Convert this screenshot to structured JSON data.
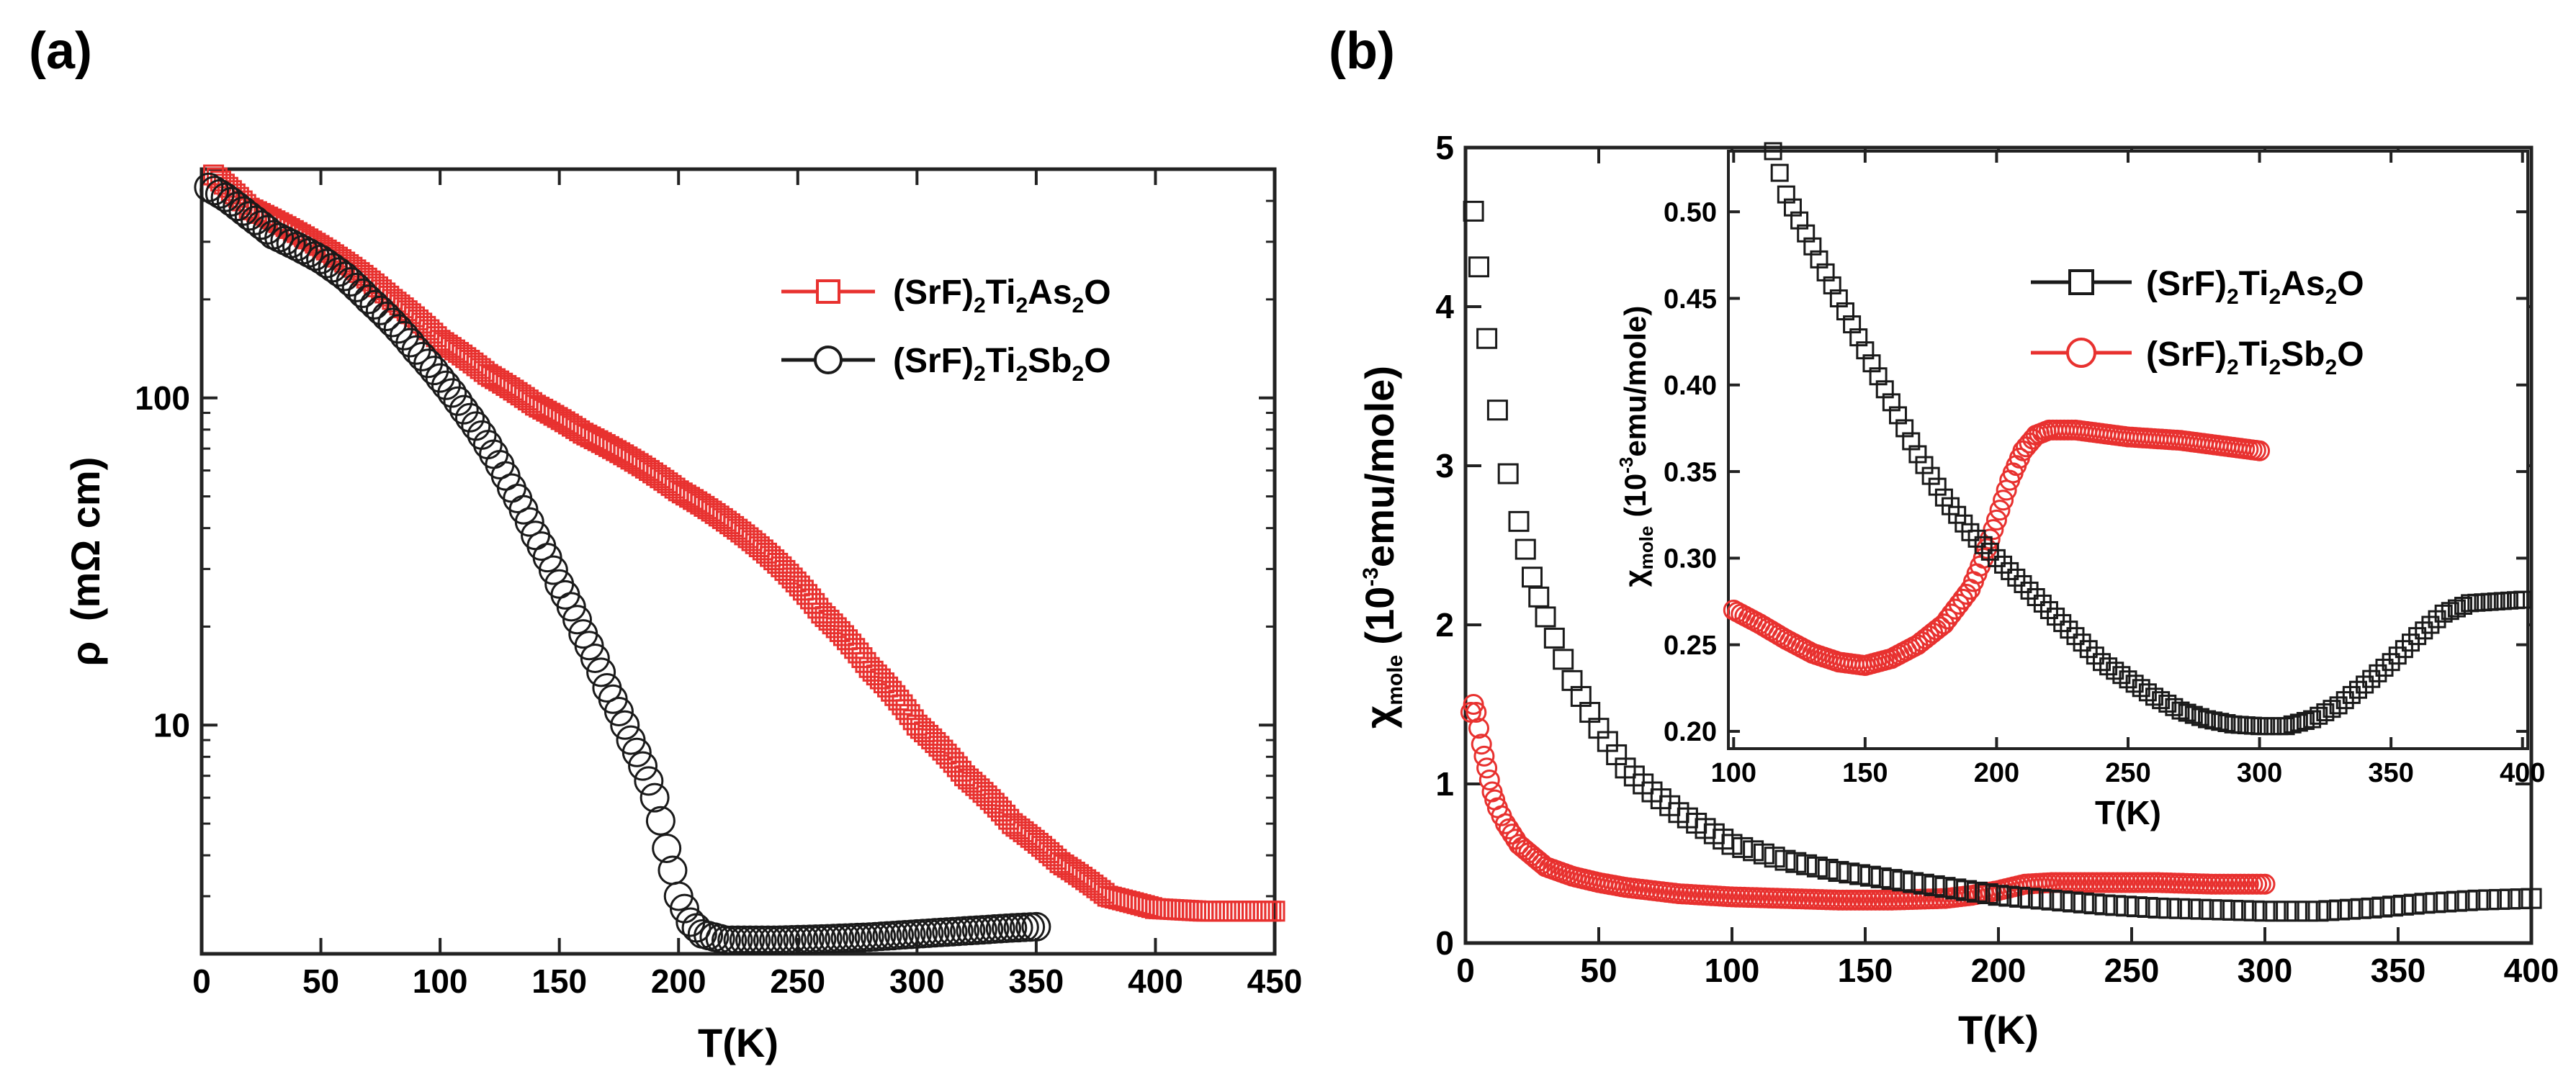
{
  "colors": {
    "black": "#1a1a1a",
    "red": "#e8312f",
    "axis": "#222222"
  },
  "chart_data": [
    {
      "panel_label": "(a)",
      "type": "scatter",
      "xlabel": "T(K)",
      "ylabel": {
        "main": "ρ",
        "unit": "(mΩ cm)"
      },
      "xlim": [
        0,
        450
      ],
      "ylim": [
        2,
        500
      ],
      "yscale": "log",
      "xticks": [
        "0",
        "50",
        "100",
        "150",
        "200",
        "250",
        "300",
        "350",
        "400",
        "450"
      ],
      "yticks": [
        "10",
        "100"
      ],
      "legend_position": "top-right",
      "series": [
        {
          "name": "(SrF)2Ti2As2O",
          "label": {
            "base": "(SrF)",
            "s1": "2",
            "m1": "Ti",
            "s2": "2",
            "m2": "As",
            "s3": "2",
            "end": "O"
          },
          "color": "#e8312f",
          "marker": "square",
          "points": [
            [
              5,
              480
            ],
            [
              20,
              380
            ],
            [
              40,
              320
            ],
            [
              60,
              260
            ],
            [
              80,
              200
            ],
            [
              100,
              150
            ],
            [
              120,
              118
            ],
            [
              140,
              95
            ],
            [
              160,
              78
            ],
            [
              180,
              65
            ],
            [
              200,
              52
            ],
            [
              220,
              42
            ],
            [
              240,
              32
            ],
            [
              260,
              22
            ],
            [
              280,
              15
            ],
            [
              300,
              10
            ],
            [
              320,
              7
            ],
            [
              340,
              5
            ],
            [
              360,
              3.8
            ],
            [
              380,
              3.0
            ],
            [
              400,
              2.75
            ],
            [
              420,
              2.7
            ],
            [
              450,
              2.7
            ]
          ]
        },
        {
          "name": "(SrF)2Ti2Sb2O",
          "label": {
            "base": "(SrF)",
            "s1": "2",
            "m1": "Ti",
            "s2": "2",
            "m2": "Sb",
            "s3": "2",
            "end": "O"
          },
          "color": "#1a1a1a",
          "marker": "circle",
          "points": [
            [
              3,
              440
            ],
            [
              10,
              410
            ],
            [
              20,
              360
            ],
            [
              30,
              315
            ],
            [
              40,
              290
            ],
            [
              50,
              265
            ],
            [
              60,
              235
            ],
            [
              70,
              200
            ],
            [
              80,
              170
            ],
            [
              90,
              140
            ],
            [
              100,
              115
            ],
            [
              110,
              92
            ],
            [
              120,
              72
            ],
            [
              130,
              53
            ],
            [
              140,
              38
            ],
            [
              150,
              27
            ],
            [
              160,
              19
            ],
            [
              170,
              13
            ],
            [
              180,
              9
            ],
            [
              190,
              6
            ],
            [
              195,
              4.2
            ],
            [
              200,
              3.0
            ],
            [
              205,
              2.5
            ],
            [
              210,
              2.3
            ],
            [
              220,
              2.2
            ],
            [
              240,
              2.2
            ],
            [
              260,
              2.22
            ],
            [
              280,
              2.25
            ],
            [
              300,
              2.3
            ],
            [
              320,
              2.35
            ],
            [
              340,
              2.4
            ],
            [
              350,
              2.42
            ]
          ]
        }
      ]
    },
    {
      "panel_label": "(b)",
      "type": "scatter",
      "xlabel": "T(K)",
      "ylabel": {
        "chi": "χ",
        "sub": "mole",
        "open": "(10",
        "exp": "-3",
        "rest": "emu/mole)"
      },
      "xlim": [
        0,
        400
      ],
      "ylim": [
        0,
        5
      ],
      "xticks": [
        "0",
        "50",
        "100",
        "150",
        "200",
        "250",
        "300",
        "350",
        "400"
      ],
      "yticks": [
        "0",
        "1",
        "2",
        "3",
        "4",
        "5"
      ],
      "legend_position": "top-right",
      "series": [
        {
          "name": "(SrF)2Ti2As2O",
          "label": {
            "base": "(SrF)",
            "s1": "2",
            "m1": "Ti",
            "s2": "2",
            "m2": "As",
            "s3": "2",
            "end": "O"
          },
          "color": "#1a1a1a",
          "marker": "square",
          "points": [
            [
              3,
              4.6
            ],
            [
              5,
              4.25
            ],
            [
              8,
              3.8
            ],
            [
              12,
              3.35
            ],
            [
              16,
              2.95
            ],
            [
              20,
              2.65
            ],
            [
              25,
              2.3
            ],
            [
              30,
              2.05
            ],
            [
              40,
              1.65
            ],
            [
              50,
              1.35
            ],
            [
              60,
              1.1
            ],
            [
              70,
              0.95
            ],
            [
              80,
              0.82
            ],
            [
              90,
              0.72
            ],
            [
              100,
              0.62
            ],
            [
              120,
              0.52
            ],
            [
              140,
              0.45
            ],
            [
              160,
              0.4
            ],
            [
              180,
              0.35
            ],
            [
              200,
              0.3
            ],
            [
              220,
              0.27
            ],
            [
              240,
              0.24
            ],
            [
              260,
              0.22
            ],
            [
              280,
              0.21
            ],
            [
              300,
              0.2
            ],
            [
              320,
              0.2
            ],
            [
              340,
              0.22
            ],
            [
              360,
              0.25
            ],
            [
              380,
              0.27
            ],
            [
              400,
              0.28
            ]
          ]
        },
        {
          "name": "(SrF)2Ti2Sb2O",
          "label": {
            "base": "(SrF)",
            "s1": "2",
            "m1": "Ti",
            "s2": "2",
            "m2": "Sb",
            "s3": "2",
            "end": "O"
          },
          "color": "#e8312f",
          "marker": "circle",
          "points": [
            [
              2,
              1.45
            ],
            [
              3,
              1.5
            ],
            [
              4,
              1.45
            ],
            [
              5,
              1.35
            ],
            [
              6,
              1.25
            ],
            [
              8,
              1.1
            ],
            [
              10,
              0.95
            ],
            [
              12,
              0.85
            ],
            [
              15,
              0.75
            ],
            [
              20,
              0.62
            ],
            [
              25,
              0.55
            ],
            [
              30,
              0.48
            ],
            [
              40,
              0.42
            ],
            [
              50,
              0.38
            ],
            [
              60,
              0.35
            ],
            [
              80,
              0.31
            ],
            [
              100,
              0.29
            ],
            [
              120,
              0.28
            ],
            [
              140,
              0.27
            ],
            [
              160,
              0.27
            ],
            [
              180,
              0.28
            ],
            [
              190,
              0.3
            ],
            [
              200,
              0.33
            ],
            [
              210,
              0.37
            ],
            [
              220,
              0.38
            ],
            [
              240,
              0.38
            ],
            [
              260,
              0.38
            ],
            [
              280,
              0.37
            ],
            [
              300,
              0.37
            ]
          ]
        }
      ],
      "inset": {
        "xlabel": "T(K)",
        "ylabel": {
          "chi": "χ",
          "sub": "mole",
          "open": "(10",
          "exp": "-3",
          "rest": "emu/mole)"
        },
        "xlim": [
          98,
          402
        ],
        "ylim": [
          0.19,
          0.535
        ],
        "xticks": [
          "100",
          "150",
          "200",
          "250",
          "300",
          "350",
          "400"
        ],
        "yticks": [
          "0.20",
          "0.25",
          "0.30",
          "0.35",
          "0.40",
          "0.45",
          "0.50"
        ],
        "series": [
          {
            "name": "(SrF)2Ti2As2O",
            "color": "#1a1a1a",
            "marker": "square",
            "points": [
              [
                115,
                0.535
              ],
              [
                120,
                0.51
              ],
              [
                130,
                0.48
              ],
              [
                140,
                0.45
              ],
              [
                150,
                0.42
              ],
              [
                160,
                0.39
              ],
              [
                170,
                0.36
              ],
              [
                180,
                0.335
              ],
              [
                190,
                0.315
              ],
              [
                200,
                0.3
              ],
              [
                210,
                0.285
              ],
              [
                220,
                0.27
              ],
              [
                230,
                0.255
              ],
              [
                240,
                0.24
              ],
              [
                250,
                0.23
              ],
              [
                260,
                0.22
              ],
              [
                270,
                0.212
              ],
              [
                280,
                0.207
              ],
              [
                290,
                0.204
              ],
              [
                300,
                0.203
              ],
              [
                310,
                0.203
              ],
              [
                320,
                0.207
              ],
              [
                330,
                0.215
              ],
              [
                340,
                0.227
              ],
              [
                350,
                0.24
              ],
              [
                360,
                0.255
              ],
              [
                370,
                0.268
              ],
              [
                380,
                0.274
              ],
              [
                390,
                0.275
              ],
              [
                400,
                0.276
              ]
            ]
          },
          {
            "name": "(SrF)2Ti2Sb2O",
            "color": "#e8312f",
            "marker": "circle",
            "points": [
              [
                100,
                0.27
              ],
              [
                110,
                0.262
              ],
              [
                120,
                0.253
              ],
              [
                130,
                0.245
              ],
              [
                140,
                0.24
              ],
              [
                150,
                0.238
              ],
              [
                160,
                0.242
              ],
              [
                170,
                0.25
              ],
              [
                180,
                0.262
              ],
              [
                190,
                0.282
              ],
              [
                195,
                0.3
              ],
              [
                200,
                0.322
              ],
              [
                205,
                0.345
              ],
              [
                210,
                0.362
              ],
              [
                215,
                0.371
              ],
              [
                220,
                0.374
              ],
              [
                230,
                0.374
              ],
              [
                240,
                0.372
              ],
              [
                250,
                0.37
              ],
              [
                260,
                0.369
              ],
              [
                270,
                0.368
              ],
              [
                280,
                0.366
              ],
              [
                290,
                0.364
              ],
              [
                300,
                0.362
              ]
            ]
          }
        ]
      }
    }
  ]
}
